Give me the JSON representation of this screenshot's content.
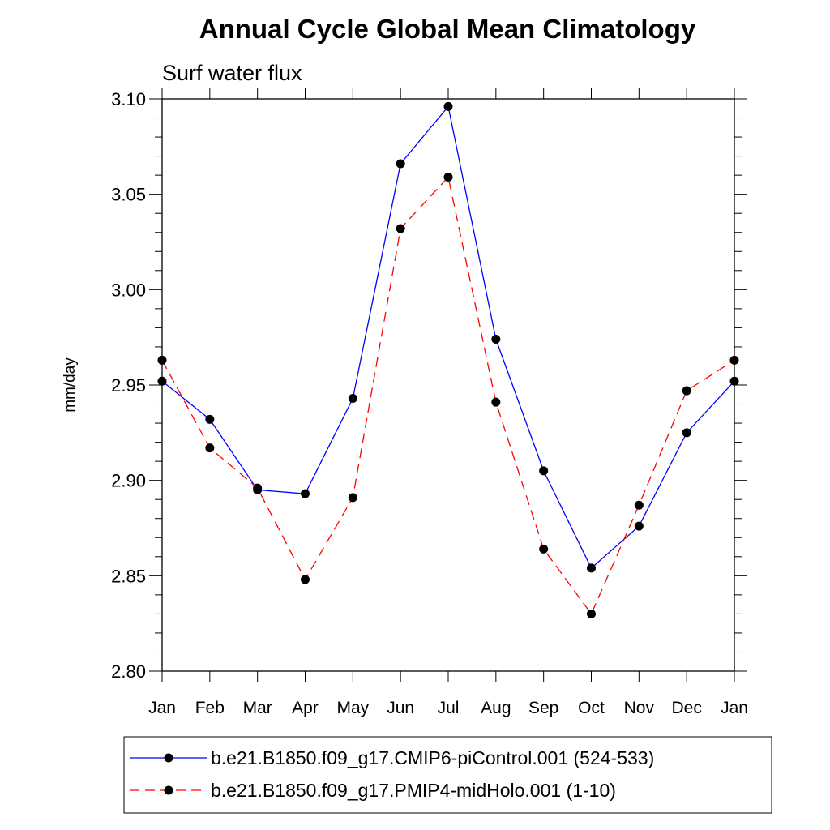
{
  "chart_data": {
    "type": "line",
    "title": "Annual Cycle Global Mean Climatology",
    "subtitle": "Surf water flux",
    "xlabel": "",
    "ylabel": "mm/day",
    "categories": [
      "Jan",
      "Feb",
      "Mar",
      "Apr",
      "May",
      "Jun",
      "Jul",
      "Aug",
      "Sep",
      "Oct",
      "Nov",
      "Dec",
      "Jan"
    ],
    "ylim": [
      2.8,
      3.1
    ],
    "yticks": [
      2.8,
      2.85,
      2.9,
      2.95,
      3.0,
      3.05,
      3.1
    ],
    "ytick_labels": [
      "2.80",
      "2.85",
      "2.90",
      "2.95",
      "3.00",
      "3.05",
      "3.10"
    ],
    "grid": false,
    "legend_position": "bottom",
    "series": [
      {
        "name": "b.e21.B1850.f09_g17.CMIP6-piControl.001 (524-533)",
        "color": "#0000ff",
        "style": "solid",
        "values": [
          2.952,
          2.932,
          2.895,
          2.893,
          2.943,
          3.066,
          3.096,
          2.974,
          2.905,
          2.854,
          2.876,
          2.925,
          2.952
        ]
      },
      {
        "name": "b.e21.B1850.f09_g17.PMIP4-midHolo.001 (1-10)",
        "color": "#ff0000",
        "style": "dashed",
        "values": [
          2.963,
          2.917,
          2.896,
          2.848,
          2.891,
          3.032,
          3.059,
          2.941,
          2.864,
          2.83,
          2.887,
          2.947,
          2.963
        ]
      }
    ]
  }
}
